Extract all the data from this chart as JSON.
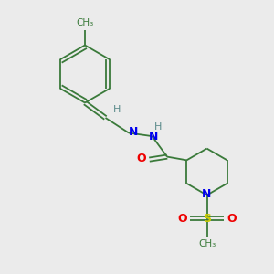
{
  "background_color": "#ebebeb",
  "bond_color": "#3a7a3a",
  "atom_colors": {
    "N": "#0000ee",
    "O": "#ee0000",
    "S": "#cccc00",
    "H": "#5a8a8a",
    "C": "#3a7a3a"
  },
  "figsize": [
    3.0,
    3.0
  ],
  "dpi": 100
}
